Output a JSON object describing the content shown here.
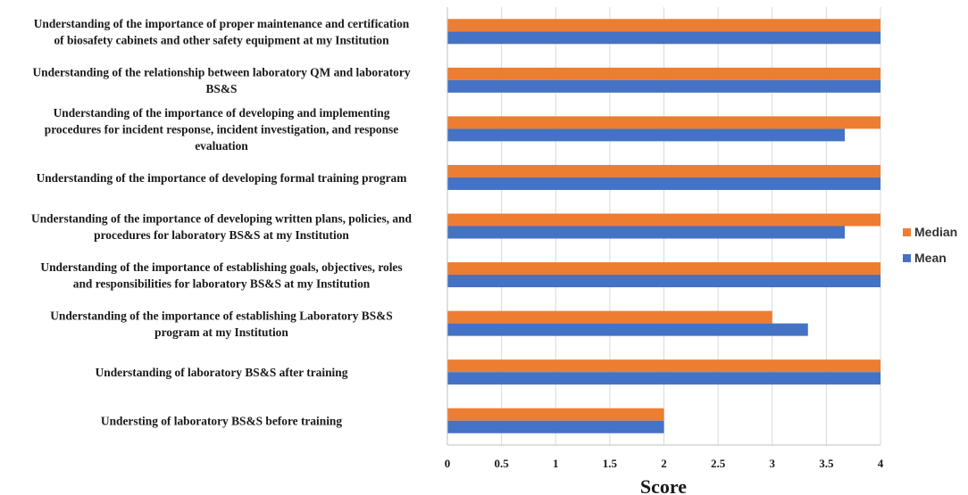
{
  "chart_data": {
    "type": "bar",
    "orientation": "horizontal",
    "title": "",
    "xlabel": "Score",
    "ylabel": "",
    "xlim": [
      0,
      4
    ],
    "xticks": [
      "0",
      "0.5",
      "1",
      "1.5",
      "2",
      "2.5",
      "3",
      "3.5",
      "4"
    ],
    "grid": true,
    "legend_position": "right",
    "categories": [
      [
        "Understanding of the importance of proper maintenance and certification",
        "of biosafety cabinets and other safety equipment at my Institution"
      ],
      [
        "Understanding of the relationship between laboratory QM and laboratory",
        "BS&S"
      ],
      [
        "Understanding of the importance of developing and implementing",
        "procedures for  incident response, incident investigation, and response",
        "evaluation"
      ],
      [
        "Understanding of the importance of developing formal training program"
      ],
      [
        "Understanding of the importance of developing written plans, policies, and",
        "procedures for laboratory BS&S at my Institution"
      ],
      [
        "Understanding of the importance of establishing goals, objectives, roles",
        "and responsibilities for  laboratory BS&S at my Institution"
      ],
      [
        "Understanding of the importance of establishing Laboratory BS&S",
        "program at my Institution"
      ],
      [
        "Understanding of laboratory BS&S after training"
      ],
      [
        "Understing of laboratory BS&S before training"
      ]
    ],
    "series": [
      {
        "name": "Median",
        "color": "#ED7D31",
        "values": [
          4,
          4,
          4,
          4,
          4,
          4,
          3,
          4,
          2
        ]
      },
      {
        "name": "Mean",
        "color": "#4472C4",
        "values": [
          4,
          4,
          3.67,
          4,
          3.67,
          4,
          3.33,
          4,
          2
        ]
      }
    ]
  }
}
